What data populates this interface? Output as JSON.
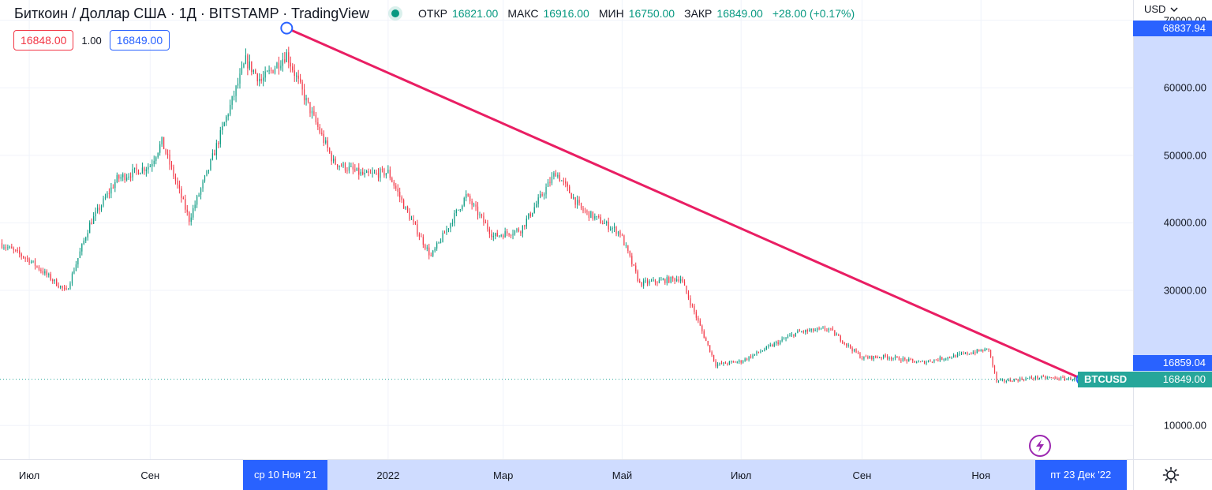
{
  "header": {
    "symbol_title": "Биткоин / Доллар США · 1Д · BITSTAMP · TradingView",
    "ohlc": [
      {
        "key": "ОТКР",
        "value": "16821.00"
      },
      {
        "key": "МАКС",
        "value": "16916.00"
      },
      {
        "key": "МИН",
        "value": "16750.00"
      },
      {
        "key": "ЗАКР",
        "value": "16849.00"
      }
    ],
    "change": "+28.00 (+0.17%)",
    "currency": "USD",
    "bid": "16848.00",
    "spread": "1.00",
    "ask": "16849.00"
  },
  "colors": {
    "up": "#089981",
    "down": "#f23645",
    "trendline": "#e91e63",
    "accent": "#2962ff",
    "highlight": "#cfdcff",
    "tag_green": "#26a69a"
  },
  "price_axis": {
    "ticks": [
      "10000.00",
      "30000.00",
      "40000.00",
      "50000.00",
      "60000.00",
      "70000.00"
    ],
    "labels": {
      "trend_high": "68837.94",
      "trend_low": "16859.04",
      "last": "16849.00",
      "symbol_tag": "BTCUSD"
    }
  },
  "time_axis": {
    "ticks": [
      "Июл",
      "Сен",
      "2022",
      "Мар",
      "Май",
      "Июл",
      "Сен",
      "Ноя"
    ],
    "start_date": "ср 10 Ноя '21",
    "end_date": "пт 23 Дек '22"
  },
  "icons": {
    "currency_toggle": "chevron-down-icon",
    "alert": "lightning-icon",
    "settings": "gear-icon"
  },
  "chart_data": {
    "type": "candlestick",
    "symbol": "BTCUSD",
    "exchange": "BITSTAMP",
    "interval": "1D",
    "ylim": [
      5000,
      73000
    ],
    "x_range": [
      "2021-06-16",
      "2023-01-18"
    ],
    "closes": [
      [
        "2021-06-16",
        37000
      ],
      [
        "2021-07-01",
        34500
      ],
      [
        "2021-07-20",
        29800
      ],
      [
        "2021-08-01",
        39800
      ],
      [
        "2021-08-15",
        46500
      ],
      [
        "2021-09-01",
        48500
      ],
      [
        "2021-09-07",
        52000
      ],
      [
        "2021-09-21",
        40500
      ],
      [
        "2021-10-01",
        48000
      ],
      [
        "2021-10-20",
        64000
      ],
      [
        "2021-10-28",
        61000
      ],
      [
        "2021-11-10",
        65000
      ],
      [
        "2021-11-20",
        58000
      ],
      [
        "2021-12-04",
        49000
      ],
      [
        "2021-12-20",
        47000
      ],
      [
        "2022-01-01",
        47500
      ],
      [
        "2022-01-10",
        42000
      ],
      [
        "2022-01-23",
        35000
      ],
      [
        "2022-02-10",
        44000
      ],
      [
        "2022-02-24",
        38000
      ],
      [
        "2022-03-10",
        39000
      ],
      [
        "2022-03-28",
        47500
      ],
      [
        "2022-04-10",
        42000
      ],
      [
        "2022-04-30",
        38500
      ],
      [
        "2022-05-10",
        31000
      ],
      [
        "2022-05-31",
        31800
      ],
      [
        "2022-06-13",
        22500
      ],
      [
        "2022-06-18",
        19000
      ],
      [
        "2022-07-01",
        19500
      ],
      [
        "2022-07-30",
        23800
      ],
      [
        "2022-08-15",
        24300
      ],
      [
        "2022-09-01",
        20000
      ],
      [
        "2022-09-13",
        20200
      ],
      [
        "2022-10-01",
        19300
      ],
      [
        "2022-11-05",
        21300
      ],
      [
        "2022-11-09",
        16500
      ],
      [
        "2022-11-30",
        17100
      ],
      [
        "2022-12-23",
        16849
      ]
    ],
    "trendline": {
      "start": {
        "date": "2021-11-10",
        "price": 68837.94
      },
      "end": {
        "date": "2022-12-23",
        "price": 16859.04
      }
    },
    "last_price": 16849.0
  }
}
